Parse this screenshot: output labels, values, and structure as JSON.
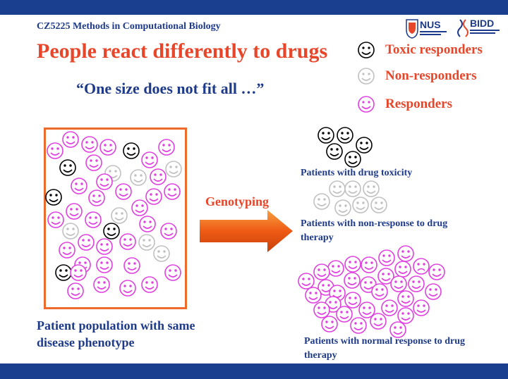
{
  "header": {
    "course": "CZ5225 Methods in Computational Biology",
    "logo_left": "NUS",
    "logo_right": "BIDD"
  },
  "slide": {
    "title": "People react differently to drugs",
    "quote": "“One size does not fit all …”",
    "genotyping_label": "Genotyping",
    "population_caption": "Patient population with same disease phenotype"
  },
  "legend": [
    {
      "label": "Toxic responders",
      "color": "#000000",
      "icon": "smiley-icon"
    },
    {
      "label": "Non-responders",
      "color": "#c0c0c0",
      "icon": "smiley-icon"
    },
    {
      "label": "Responders",
      "color": "#e040e0",
      "icon": "smiley-icon"
    }
  ],
  "groups": {
    "toxicity": {
      "caption": "Patients with drug toxicity"
    },
    "non_response": {
      "caption": "Patients with non-response to drug therapy"
    },
    "normal_response": {
      "caption": "Patients with normal response to drug therapy"
    }
  },
  "colors": {
    "title": "#e8462a",
    "text": "#1e3a8a",
    "bar": "#1b3f8f",
    "box": "#ee6a2a",
    "toxic": "#000000",
    "non": "#c0c0c0",
    "resp": "#e040e0"
  }
}
